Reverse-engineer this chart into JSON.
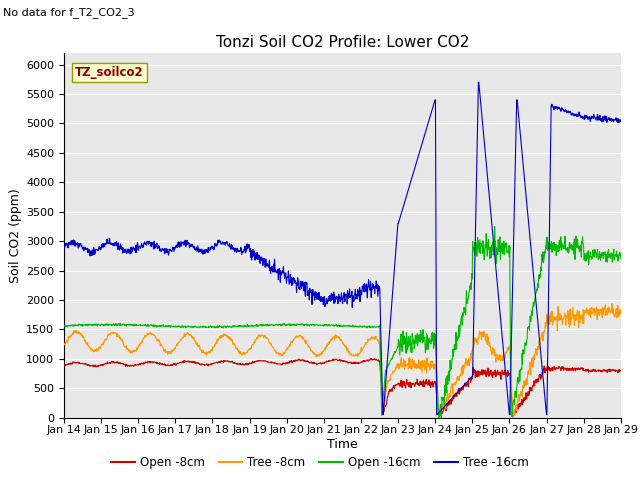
{
  "title": "Tonzi Soil CO2 Profile: Lower CO2",
  "no_data_text": "No data for f_T2_CO2_3",
  "dataset_label": "TZ_soilco2",
  "xlabel": "Time",
  "ylabel": "Soil CO2 (ppm)",
  "ylim": [
    0,
    6200
  ],
  "yticks": [
    0,
    500,
    1000,
    1500,
    2000,
    2500,
    3000,
    3500,
    4000,
    4500,
    5000,
    5500,
    6000
  ],
  "xtick_labels": [
    "Jan 14",
    "Jan 15",
    "Jan 16",
    "Jan 17",
    "Jan 18",
    "Jan 19",
    "Jan 20",
    "Jan 21",
    "Jan 22",
    "Jan 23",
    "Jan 24",
    "Jan 25",
    "Jan 26",
    "Jan 27",
    "Jan 28",
    "Jan 29"
  ],
  "legend_entries": [
    "Open -8cm",
    "Tree -8cm",
    "Open -16cm",
    "Tree -16cm"
  ],
  "legend_colors": [
    "#cc0000",
    "#ff9900",
    "#00bb00",
    "#0000cc"
  ],
  "bg_color": "#e8e8e8",
  "title_fontsize": 11,
  "axis_label_fontsize": 9,
  "tick_fontsize": 8,
  "nodata_fontsize": 8,
  "label_fontsize": 8.5,
  "legend_fontsize": 8.5
}
